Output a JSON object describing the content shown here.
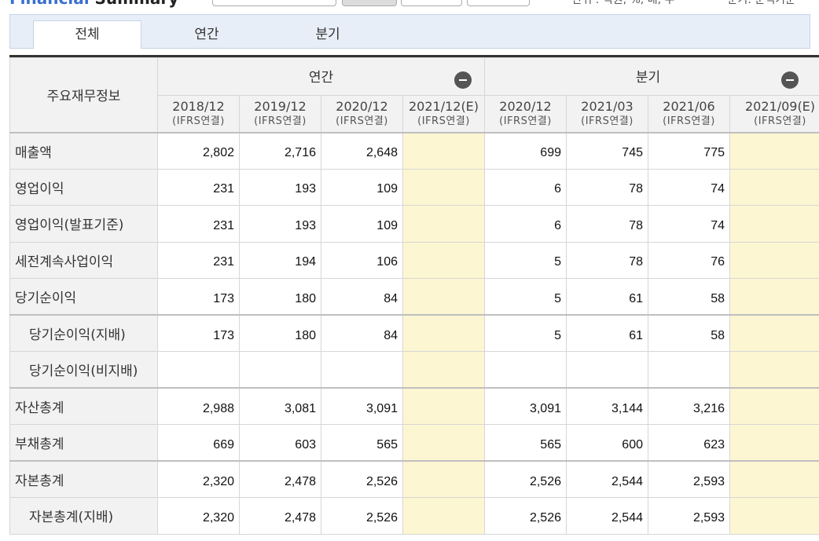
{
  "header": {
    "title_accent": "Financial",
    "title_rest": "Summary",
    "unit_note": "* 단위 : 억원, %, 배, 주",
    "basis_note": "* 분기: 순액기준"
  },
  "tabs": [
    {
      "label": "전체",
      "active": true
    },
    {
      "label": "연간",
      "active": false
    },
    {
      "label": "분기",
      "active": false
    }
  ],
  "table": {
    "row_header": "주요재무정보",
    "groups": {
      "annual": "연간",
      "quarterly": "분기"
    },
    "basis": "(IFRS연결)",
    "columns": [
      "2018/12",
      "2019/12",
      "2020/12",
      "2021/12(E)",
      "2020/12",
      "2021/03",
      "2021/06",
      "2021/09(E)"
    ],
    "rows": [
      {
        "label": "매출액",
        "values": [
          "2,802",
          "2,716",
          "2,648",
          "",
          "699",
          "745",
          "775",
          ""
        ]
      },
      {
        "label": "영업이익",
        "values": [
          "231",
          "193",
          "109",
          "",
          "6",
          "78",
          "74",
          ""
        ]
      },
      {
        "label": "영업이익(발표기준)",
        "values": [
          "231",
          "193",
          "109",
          "",
          "6",
          "78",
          "74",
          ""
        ]
      },
      {
        "label": "세전계속사업이익",
        "values": [
          "231",
          "194",
          "106",
          "",
          "5",
          "78",
          "76",
          ""
        ]
      },
      {
        "label": "당기순이익",
        "values": [
          "173",
          "180",
          "84",
          "",
          "5",
          "61",
          "58",
          ""
        ]
      },
      {
        "label": "당기순이익(지배)",
        "values": [
          "173",
          "180",
          "84",
          "",
          "5",
          "61",
          "58",
          ""
        ]
      },
      {
        "label": "당기순이익(비지배)",
        "values": [
          "",
          "",
          "",
          "",
          "",
          "",
          "",
          ""
        ]
      },
      {
        "label": "자산총계",
        "values": [
          "2,988",
          "3,081",
          "3,091",
          "",
          "3,091",
          "3,144",
          "3,216",
          ""
        ]
      },
      {
        "label": "부채총계",
        "values": [
          "669",
          "603",
          "565",
          "",
          "565",
          "600",
          "623",
          ""
        ]
      },
      {
        "label": "자본총계",
        "values": [
          "2,320",
          "2,478",
          "2,526",
          "",
          "2,526",
          "2,544",
          "2,593",
          ""
        ]
      },
      {
        "label": "자본총계(지배)",
        "values": [
          "2,320",
          "2,478",
          "2,526",
          "",
          "2,526",
          "2,544",
          "2,593",
          ""
        ]
      }
    ]
  }
}
